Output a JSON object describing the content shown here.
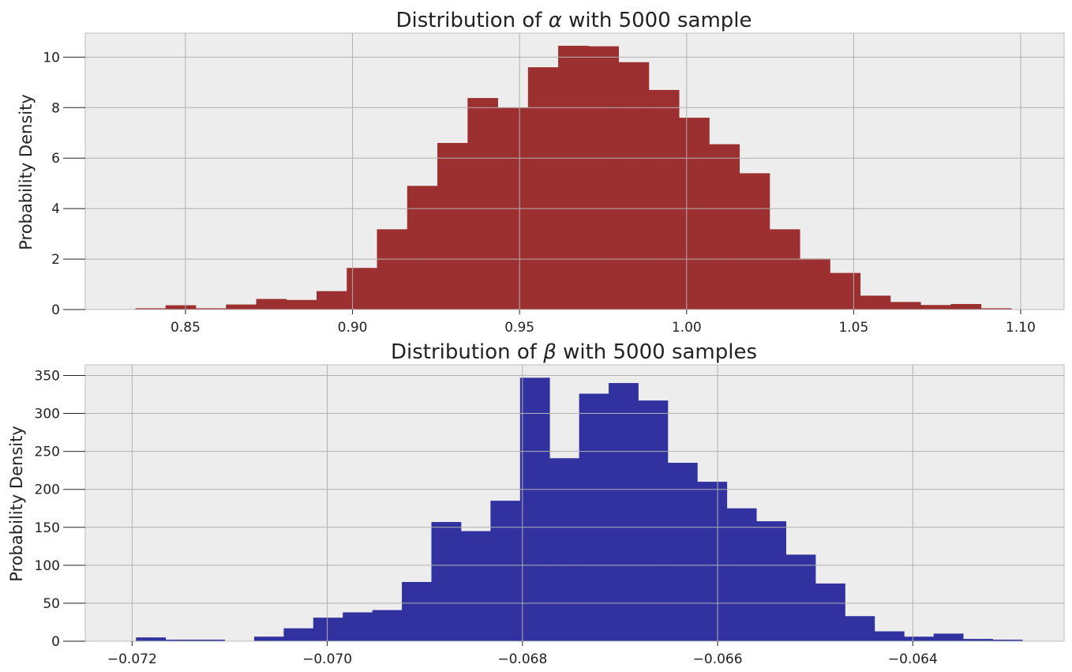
{
  "chart_data": [
    {
      "type": "bar",
      "title_pre": "Distribution of ",
      "title_symbol": "α",
      "title_post": " with 5000 sample",
      "xlabel": "",
      "ylabel": "Probability Density",
      "xlim": [
        0.82,
        1.113
      ],
      "ylim": [
        0,
        10.95
      ],
      "xticks": [
        0.85,
        0.9,
        0.95,
        1.0,
        1.05,
        1.1
      ],
      "xtick_labels": [
        "0.85",
        "0.90",
        "0.95",
        "1.00",
        "1.05",
        "1.10"
      ],
      "yticks": [
        0,
        2,
        4,
        6,
        8,
        10
      ],
      "ytick_labels": [
        "0",
        "2",
        "4",
        "6",
        "8",
        "10"
      ],
      "bin_start": 0.835,
      "bin_width": 0.00904,
      "values": [
        0.05,
        0.17,
        0.05,
        0.2,
        0.42,
        0.38,
        0.73,
        1.65,
        3.18,
        4.9,
        6.6,
        8.38,
        8.0,
        9.6,
        10.45,
        10.43,
        9.8,
        8.7,
        7.6,
        6.55,
        5.4,
        3.18,
        2.02,
        1.45,
        0.55,
        0.3,
        0.18,
        0.22,
        0.05
      ],
      "color": "#9c2f2f",
      "grid": true
    },
    {
      "type": "bar",
      "title_pre": "Distribution of ",
      "title_symbol": "β",
      "title_post": " with 5000 samples",
      "xlabel": "",
      "ylabel": "Probability Density",
      "xlim": [
        -0.07248,
        -0.06245
      ],
      "ylim": [
        0,
        364
      ],
      "xticks": [
        -0.072,
        -0.07,
        -0.068,
        -0.066,
        -0.064
      ],
      "xtick_labels": [
        "−0.072",
        "−0.070",
        "−0.068",
        "−0.066",
        "−0.064"
      ],
      "yticks": [
        0,
        50,
        100,
        150,
        200,
        250,
        300,
        350
      ],
      "ytick_labels": [
        "0",
        "50",
        "100",
        "150",
        "200",
        "250",
        "300",
        "350"
      ],
      "bin_start": -0.07196,
      "bin_width": 0.0003027,
      "values": [
        5,
        2,
        2,
        0,
        6,
        17,
        31,
        38,
        41,
        78,
        157,
        145,
        185,
        347,
        241,
        326,
        340,
        317,
        235,
        210,
        175,
        158,
        114,
        76,
        33,
        13,
        6,
        10,
        3,
        2
      ],
      "color": "#31329f",
      "grid": true
    }
  ]
}
